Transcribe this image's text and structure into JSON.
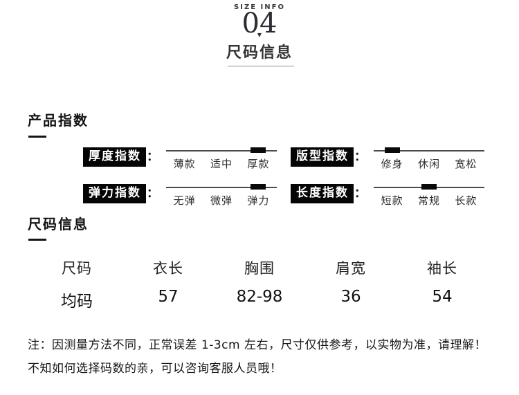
{
  "header": {
    "eyebrow": "SIZE INFO",
    "number": "04",
    "arrow": "▼",
    "title": "尺码信息"
  },
  "product_index": {
    "section_title": "产品指数",
    "colon": "：",
    "items": [
      {
        "label": "厚度指数",
        "options": [
          "薄款",
          "适中",
          "厚款"
        ],
        "selected": 2
      },
      {
        "label": "版型指数",
        "options": [
          "修身",
          "休闲",
          "宽松"
        ],
        "selected": 0
      },
      {
        "label": "弹力指数",
        "options": [
          "无弹",
          "微弹",
          "弹力"
        ],
        "selected": 2
      },
      {
        "label": "长度指数",
        "options": [
          "短款",
          "常规",
          "长款"
        ],
        "selected": 1
      }
    ]
  },
  "size_info": {
    "section_title": "尺码信息",
    "table": {
      "headers": [
        "尺码",
        "衣长",
        "胸围",
        "肩宽",
        "袖长"
      ],
      "rows": [
        [
          "均码",
          "57",
          "82-98",
          "36",
          "54"
        ]
      ]
    }
  },
  "note": {
    "line1": "注：因测量方法不同，正常误差 1-3cm 左右，尺寸仅供参考，以实物为准，请理解！",
    "line2": "不知如何选择码数的亲，可以咨询客服人员哦！"
  },
  "colors": {
    "badge_bg": "#050505",
    "badge_text": "#ffffff",
    "scale_line": "#4a4a4a",
    "marker": "#0a0a0a",
    "text": "#333333"
  }
}
